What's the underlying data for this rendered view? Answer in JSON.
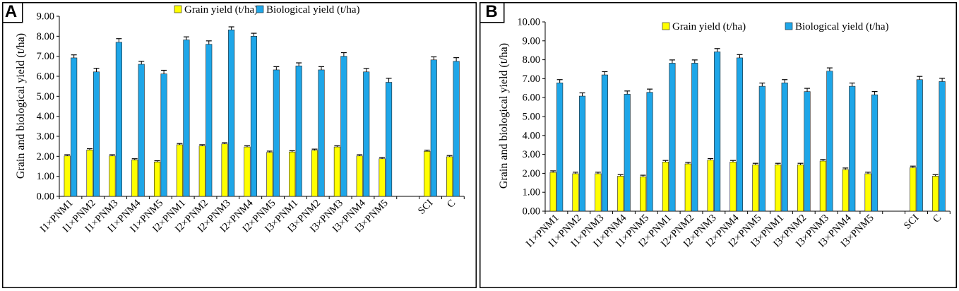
{
  "colors": {
    "grain": "#ffff00",
    "bio": "#1ea6e8",
    "bar_edge": "#222222",
    "axis": "#000000",
    "frame": "#000000"
  },
  "chart_data": [
    {
      "panel_label": "A",
      "type": "bar",
      "categories": [
        "I1×PNM1",
        "I1×PNM2",
        "I1×PNM3",
        "I1×PNM4",
        "I1×PNM5",
        "I2×PNM1",
        "I2×PNM2",
        "I2×PNM3",
        "I2×PNM4",
        "I2×PNM5",
        "I3×PNM1",
        "I3×PNM2",
        "I3×PNM3",
        "I3×PNM4",
        "I3×PNM5",
        "",
        "SCI",
        "C"
      ],
      "series": [
        {
          "name": "Grain yield (t/ha)",
          "values": [
            2.02,
            2.32,
            2.02,
            1.82,
            1.72,
            2.58,
            2.52,
            2.62,
            2.47,
            2.2,
            2.22,
            2.3,
            2.47,
            2.02,
            1.88,
            null,
            2.25,
            1.98
          ],
          "errors": [
            0.06,
            0.06,
            0.06,
            0.06,
            0.06,
            0.06,
            0.06,
            0.06,
            0.06,
            0.06,
            0.06,
            0.06,
            0.06,
            0.06,
            0.06,
            null,
            0.06,
            0.06
          ]
        },
        {
          "name": "Biological  yield (t/ha)",
          "values": [
            6.92,
            6.22,
            7.7,
            6.6,
            6.12,
            7.82,
            7.6,
            8.32,
            8.0,
            6.32,
            6.52,
            6.32,
            7.0,
            6.22,
            5.7,
            null,
            6.82,
            6.75
          ],
          "errors": [
            0.15,
            0.18,
            0.18,
            0.15,
            0.18,
            0.15,
            0.17,
            0.15,
            0.15,
            0.16,
            0.15,
            0.16,
            0.18,
            0.17,
            0.2,
            null,
            0.15,
            0.18
          ]
        }
      ],
      "ylabel": "Grain and biological yield (t/ha)",
      "ylim": [
        0,
        9
      ],
      "ytick_step": 1,
      "ytick_labels": [
        "0.00",
        "1.00",
        "2.00",
        "3.00",
        "4.00",
        "5.00",
        "6.00",
        "7.00",
        "8.00",
        "9.00"
      ],
      "legend_location": "top-center"
    },
    {
      "panel_label": "B",
      "type": "bar",
      "categories": [
        "I1×PNM1",
        "I1×PNM2",
        "I1×PNM3",
        "I1×PNM4",
        "I1×PNM5",
        "I2×PNM1",
        "I2×PNM2",
        "I2×PNM3",
        "I2×PNM4",
        "I2×PNM5",
        "I3×PNM1",
        "I3×PNM2",
        "I3×PNM3",
        "I3×PNM4",
        "I3×PNM5",
        "",
        "SCI",
        "C"
      ],
      "series": [
        {
          "name": "Grain yield (t/ha)",
          "values": [
            2.05,
            1.98,
            1.98,
            1.85,
            1.82,
            2.6,
            2.5,
            2.7,
            2.6,
            2.45,
            2.45,
            2.45,
            2.65,
            2.2,
            1.98,
            null,
            2.3,
            1.85
          ],
          "errors": [
            0.08,
            0.08,
            0.08,
            0.08,
            0.08,
            0.08,
            0.08,
            0.08,
            0.08,
            0.08,
            0.08,
            0.08,
            0.08,
            0.08,
            0.08,
            null,
            0.08,
            0.08
          ]
        },
        {
          "name": "Biological yield (t/ha)",
          "values": [
            6.78,
            6.08,
            7.2,
            6.18,
            6.28,
            7.82,
            7.82,
            8.42,
            8.1,
            6.6,
            6.78,
            6.32,
            7.4,
            6.6,
            6.15,
            null,
            6.95,
            6.85
          ],
          "errors": [
            0.17,
            0.17,
            0.17,
            0.17,
            0.17,
            0.17,
            0.17,
            0.17,
            0.17,
            0.17,
            0.17,
            0.17,
            0.17,
            0.17,
            0.17,
            null,
            0.17,
            0.17
          ]
        }
      ],
      "ylabel": "Grain and biological  yield (t/ha)",
      "ylim": [
        0,
        10
      ],
      "ytick_step": 1,
      "ytick_labels": [
        "0.00",
        "1.00",
        "2.00",
        "3.00",
        "4.00",
        "5.00",
        "6.00",
        "7.00",
        "8.00",
        "9.00",
        "10.00"
      ],
      "legend_location": "top-center"
    }
  ]
}
